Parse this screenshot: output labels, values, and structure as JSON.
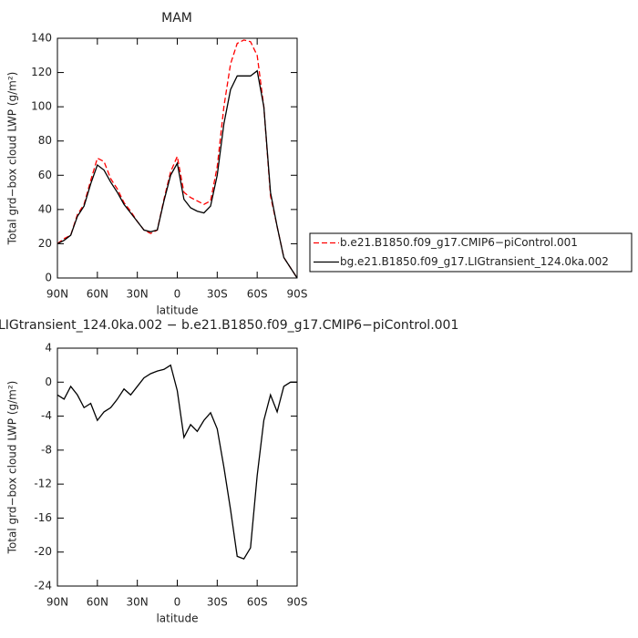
{
  "chart_data": [
    {
      "type": "line",
      "title": "MAM",
      "x_label": "latitude",
      "y_label": "Total grd−box cloud LWP (g/m²)",
      "x": [
        90,
        85,
        80,
        75,
        70,
        65,
        60,
        55,
        50,
        45,
        40,
        35,
        30,
        25,
        20,
        15,
        10,
        5,
        0,
        -5,
        -10,
        -15,
        -20,
        -25,
        -30,
        -35,
        -40,
        -45,
        -50,
        -55,
        -60,
        -65,
        -70,
        -75,
        -80,
        -85,
        -90
      ],
      "xlim": [
        90,
        -90
      ],
      "xticks": [
        {
          "value": 90,
          "label": "90N"
        },
        {
          "value": 60,
          "label": "60N"
        },
        {
          "value": 30,
          "label": "30N"
        },
        0,
        {
          "value": -30,
          "label": "30S"
        },
        {
          "value": -60,
          "label": "60S"
        },
        {
          "value": -90,
          "label": "90S"
        }
      ],
      "ylim": [
        0,
        140
      ],
      "yticks": [
        0,
        20,
        40,
        60,
        80,
        100,
        120,
        140
      ],
      "series": [
        {
          "name": "b.e21.B1850.f09_g17.CMIP6−piControl.001",
          "color": "#ff0000",
          "dashed": true,
          "values": [
            20,
            23,
            25,
            37,
            43,
            57,
            70,
            68,
            58,
            52,
            44,
            39,
            33,
            28,
            26,
            28,
            46,
            62,
            71,
            50,
            47,
            45,
            43,
            45,
            65,
            100,
            125,
            137,
            139,
            138,
            130,
            100,
            48,
            30,
            12,
            6,
            0
          ]
        },
        {
          "name": "bg.e21.B1850.f09_g17.LIGtransient_124.0ka.002",
          "color": "#000000",
          "dashed": false,
          "values": [
            20,
            22,
            25,
            36,
            42,
            55,
            66,
            63,
            56,
            50,
            43,
            38,
            33,
            28,
            27,
            28,
            45,
            60,
            67,
            46,
            41,
            39,
            38,
            42,
            60,
            90,
            110,
            118,
            118,
            118,
            121,
            100,
            50,
            30,
            12,
            6,
            0
          ]
        }
      ]
    },
    {
      "type": "line",
      "title": "LIGtransient_124.0ka.002 − b.e21.B1850.f09_g17.CMIP6−piControl.001",
      "x_label": "latitude",
      "y_label": "Total grd−box cloud LWP (g/m²)",
      "x": [
        90,
        85,
        80,
        75,
        70,
        65,
        60,
        55,
        50,
        45,
        40,
        35,
        30,
        25,
        20,
        15,
        10,
        5,
        0,
        -5,
        -10,
        -15,
        -20,
        -25,
        -30,
        -35,
        -40,
        -45,
        -50,
        -55,
        -60,
        -65,
        -70,
        -75,
        -80,
        -85,
        -90
      ],
      "xlim": [
        90,
        -90
      ],
      "xticks": [
        {
          "value": 90,
          "label": "90N"
        },
        {
          "value": 60,
          "label": "60N"
        },
        {
          "value": 30,
          "label": "30N"
        },
        0,
        {
          "value": -30,
          "label": "30S"
        },
        {
          "value": -60,
          "label": "60S"
        },
        {
          "value": -90,
          "label": "90S"
        }
      ],
      "ylim": [
        -24,
        4
      ],
      "yticks": [
        -24,
        -20,
        -16,
        -12,
        -8,
        -4,
        0,
        4
      ],
      "series": [
        {
          "color": "#000000",
          "dashed": false,
          "values": [
            -1.5,
            -2,
            -0.5,
            -1.5,
            -3,
            -2.5,
            -4.5,
            -3.5,
            -3,
            -2,
            -0.8,
            -1.5,
            -0.5,
            0.5,
            1,
            1.3,
            1.5,
            2,
            -1,
            -6.5,
            -5,
            -5.8,
            -4.5,
            -3.6,
            -5.5,
            -10,
            -15,
            -20.5,
            -20.8,
            -19.5,
            -11,
            -4.5,
            -1.5,
            -3.5,
            -0.5,
            0,
            0
          ]
        }
      ]
    }
  ]
}
